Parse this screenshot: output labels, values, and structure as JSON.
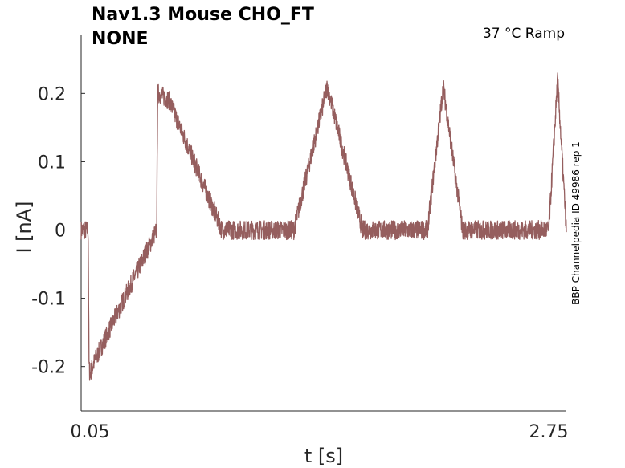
{
  "chart_data": {
    "type": "line",
    "title_line1": "Nav1.3  Mouse  CHO_FT",
    "title_line2": "NONE",
    "condition": "37 °C  Ramp",
    "side_label": "BBP Channelpedia ID 49986 rep 1",
    "xlabel": "t [s]",
    "ylabel": "I [nA]",
    "xticks": [
      "0.05",
      "2.75"
    ],
    "yticks": [
      {
        "value": 0.2,
        "label": "0.2"
      },
      {
        "value": 0.1,
        "label": "0.1"
      },
      {
        "value": 0,
        "label": "0"
      },
      {
        "value": -0.1,
        "label": "-0.1"
      },
      {
        "value": -0.2,
        "label": "-0.2"
      }
    ],
    "xlim": [
      0.01,
      2.77
    ],
    "ylim": [
      -0.265,
      0.285
    ],
    "grid": false,
    "series_color": "#955e5e",
    "series": [
      {
        "x": [
          0.01,
          0.05,
          0.055,
          0.06,
          0.09,
          0.44,
          0.445,
          0.45,
          0.51,
          0.81,
          1.22,
          1.41,
          1.61,
          1.98,
          2.07,
          2.18,
          2.67,
          2.72,
          2.77
        ],
        "y": [
          0.0,
          0.0,
          -0.2,
          -0.21,
          -0.19,
          0.0,
          0.2,
          0.2,
          0.19,
          0.0,
          0.0,
          0.21,
          0.0,
          0.0,
          0.21,
          0.0,
          0.0,
          0.22,
          0.0
        ]
      }
    ]
  }
}
